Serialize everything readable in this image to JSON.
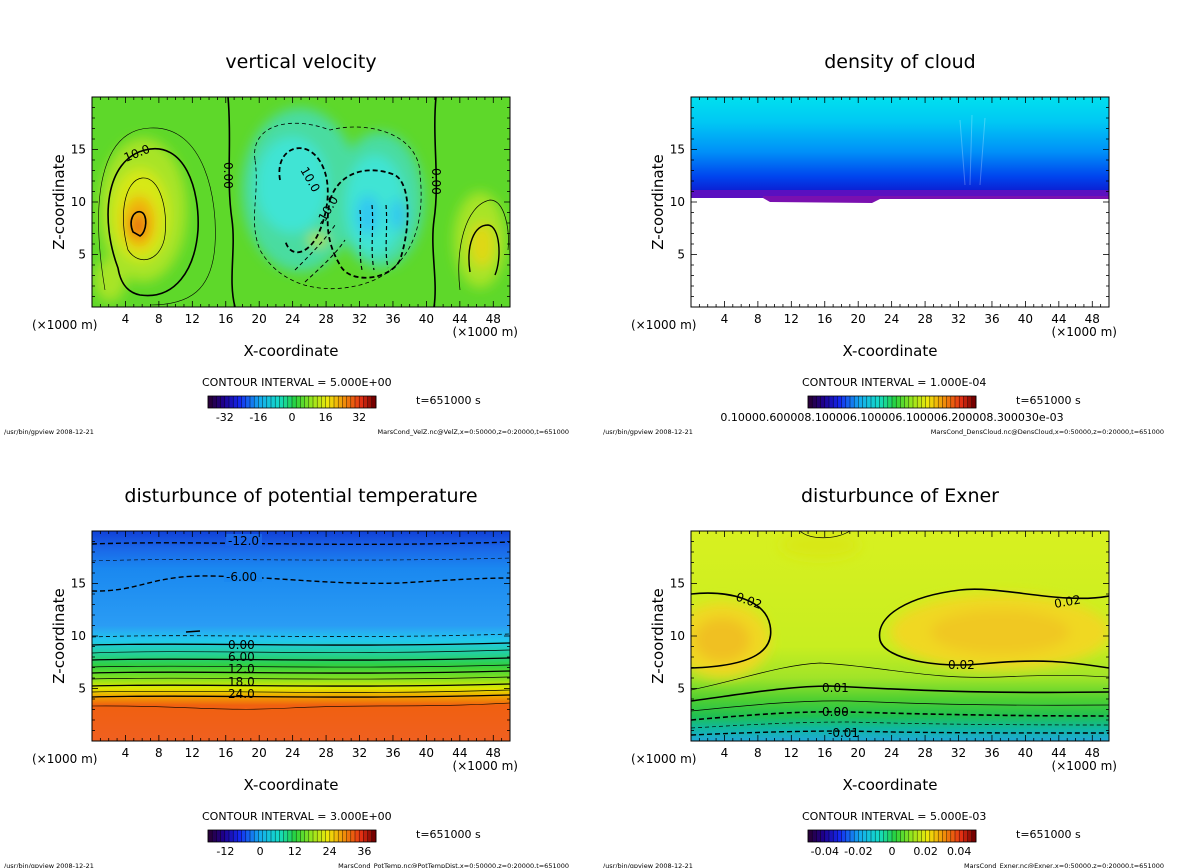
{
  "chart_data": [
    {
      "type": "heatmap",
      "title": "vertical velocity",
      "xlabel": "X-coordinate",
      "ylabel": "Z-coordinate",
      "x_unit_left": "(×1000 m)",
      "x_unit_right": "(×1000 m)",
      "xlim": [
        0,
        50
      ],
      "ylim": [
        0,
        20
      ],
      "xticks": [
        4,
        8,
        12,
        16,
        20,
        24,
        28,
        32,
        36,
        40,
        44,
        48
      ],
      "yticks": [
        5,
        10,
        15
      ],
      "colorscale": "rainbow",
      "field_extremes": {
        "max": 30,
        "min": -15
      },
      "contour_interval": "CONTOUR INTERVAL = 5.000E+00",
      "colorbar_ticks": [
        "-32",
        "-16",
        "0",
        "16",
        "32"
      ],
      "colorbar_range": [
        -40,
        40
      ],
      "contour_labels": [
        "10.0",
        "0.00",
        "10.0",
        "-10.0",
        "0.00"
      ],
      "time": "t=651000 s",
      "footer_left": "/usr/bin/gpview   2008-12-21",
      "footer_right": "MarsCond_VelZ.nc@VelZ,x=0:50000,z=0:20000,t=651000"
    },
    {
      "type": "heatmap",
      "title": "density of cloud",
      "xlabel": "X-coordinate",
      "ylabel": "Z-coordinate",
      "x_unit_left": "(×1000 m)",
      "x_unit_right": "(×1000 m)",
      "xlim": [
        0,
        50
      ],
      "ylim": [
        0,
        20
      ],
      "xticks": [
        4,
        8,
        12,
        16,
        20,
        24,
        28,
        32,
        36,
        40,
        44,
        48
      ],
      "yticks": [
        5,
        10,
        15
      ],
      "colorscale": "rainbow",
      "cloud_base_z": 10.5,
      "contour_interval": "CONTOUR INTERVAL = 1.000E-04",
      "colorbar_ticks": [
        "0.10000.600008.100006.100006.100006.200008.300030e-03"
      ],
      "time": "t=651000 s",
      "footer_left": "/usr/bin/gpview   2008-12-21",
      "footer_right": "MarsCond_DensCloud.nc@DensCloud,x=0:50000,z=0:20000,t=651000"
    },
    {
      "type": "heatmap",
      "title": "disturbunce of potential temperature",
      "xlabel": "X-coordinate",
      "ylabel": "Z-coordinate",
      "x_unit_left": "(×1000 m)",
      "x_unit_right": "(×1000 m)",
      "xlim": [
        0,
        50
      ],
      "ylim": [
        0,
        20
      ],
      "xticks": [
        4,
        8,
        12,
        16,
        20,
        24,
        28,
        32,
        36,
        40,
        44,
        48
      ],
      "yticks": [
        5,
        10,
        15
      ],
      "colorscale": "rainbow",
      "contour_interval": "CONTOUR INTERVAL = 3.000E+00",
      "colorbar_ticks": [
        "-12",
        "0",
        "12",
        "24",
        "36"
      ],
      "colorbar_range": [
        -18,
        40
      ],
      "contour_labels": [
        "-12.0",
        "-6.00",
        "0.00",
        "6.00",
        "12.0",
        "18.0",
        "24.0"
      ],
      "time": "t=651000 s",
      "footer_left": "/usr/bin/gpview   2008-12-21",
      "footer_right": "MarsCond_PotTemp.nc@PotTempDist,x=0:50000,z=0:20000,t=651000"
    },
    {
      "type": "heatmap",
      "title": "disturbunce of Exner",
      "xlabel": "X-coordinate",
      "ylabel": "Z-coordinate",
      "x_unit_left": "(×1000 m)",
      "x_unit_right": "(×1000 m)",
      "xlim": [
        0,
        50
      ],
      "ylim": [
        0,
        20
      ],
      "xticks": [
        4,
        8,
        12,
        16,
        20,
        24,
        28,
        32,
        36,
        40,
        44,
        48
      ],
      "yticks": [
        5,
        10,
        15
      ],
      "colorscale": "rainbow",
      "contour_interval": "CONTOUR INTERVAL = 5.000E-03",
      "colorbar_ticks": [
        "-0.04",
        "-0.02",
        "0",
        "0.02",
        "0.04"
      ],
      "colorbar_range": [
        -0.05,
        0.05
      ],
      "contour_labels": [
        "0.02",
        "0.02",
        "0.02",
        "0.01",
        "0.00",
        "-0.01"
      ],
      "time": "t=651000 s",
      "footer_left": "/usr/bin/gpview   2008-12-21",
      "footer_right": "MarsCond_Exner.nc@Exner,x=0:50000,z=0:20000,t=651000"
    }
  ]
}
